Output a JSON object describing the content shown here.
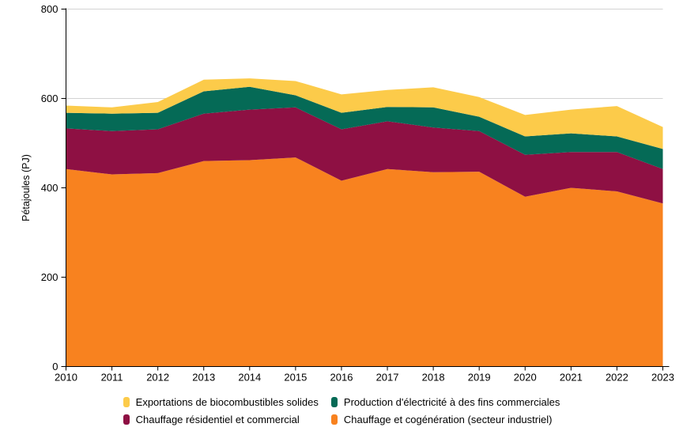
{
  "page": {
    "background": "#ffffff"
  },
  "chart_data": {
    "type": "area",
    "stacked": true,
    "title": "",
    "xlabel": "",
    "ylabel": "Pétajoules (PJ)",
    "ylim": [
      0,
      800
    ],
    "yticks": [
      0,
      200,
      400,
      600,
      800
    ],
    "grid": {
      "show": true,
      "color": "#d3d3d3"
    },
    "axis_color": "#000000",
    "text_color": "#000000",
    "legend_position": "bottom",
    "legend_display_order": [
      3,
      2,
      1,
      0
    ],
    "categories": [
      "2010",
      "2011",
      "2012",
      "2013",
      "2014",
      "2015",
      "2016",
      "2017",
      "2018",
      "2019",
      "2020",
      "2021",
      "2022",
      "2023"
    ],
    "series": [
      {
        "name": "Chauffage et cogénération (secteur industriel)",
        "color": "#F8821F",
        "values": [
          442,
          430,
          433,
          460,
          462,
          468,
          416,
          442,
          435,
          436,
          380,
          400,
          392,
          365
        ]
      },
      {
        "name": "Chauffage résidentiel et commercial",
        "color": "#8E1043",
        "values": [
          91,
          97,
          98,
          106,
          113,
          112,
          115,
          107,
          100,
          91,
          94,
          80,
          88,
          77
        ]
      },
      {
        "name": "Production d'électricité à des fins commerciales",
        "color": "#056A56",
        "values": [
          35,
          39,
          37,
          50,
          51,
          27,
          37,
          32,
          45,
          32,
          41,
          42,
          35,
          45
        ]
      },
      {
        "name": "Exportations de biocombustibles solides",
        "color": "#FCCB4A",
        "values": [
          16,
          14,
          24,
          26,
          19,
          32,
          41,
          38,
          45,
          44,
          48,
          53,
          68,
          49
        ]
      }
    ]
  }
}
